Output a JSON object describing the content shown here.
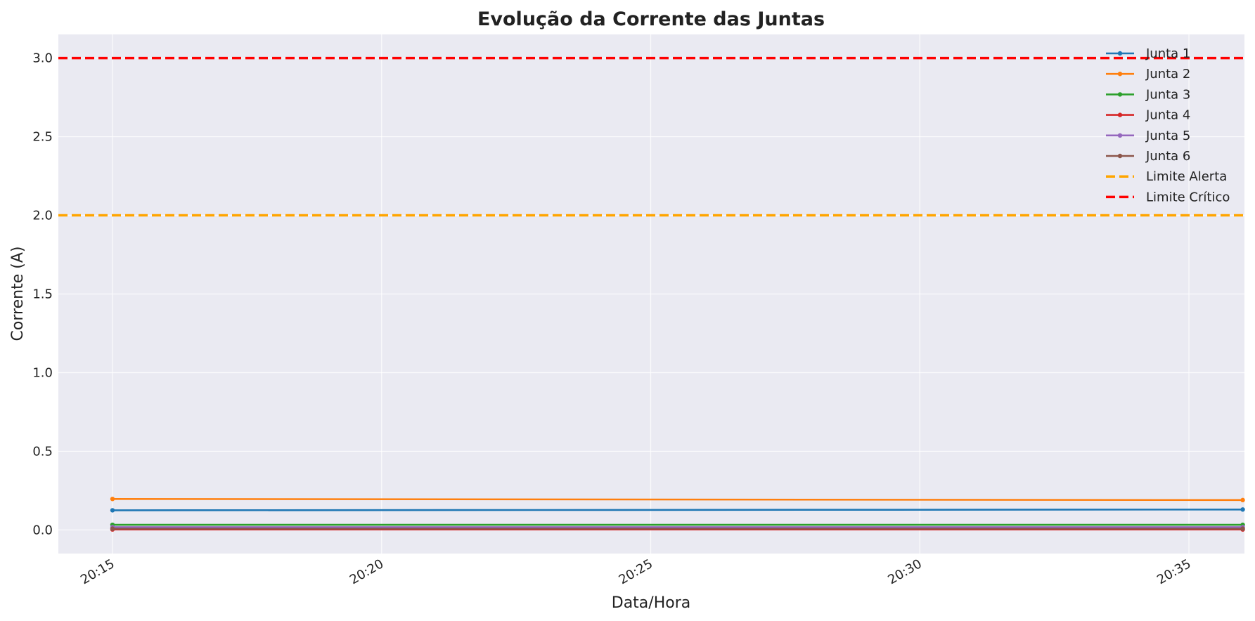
{
  "chart_data": {
    "type": "line",
    "title": "Evolução da Corrente das Juntas",
    "xlabel": "Data/Hora",
    "ylabel": "Corrente (A)",
    "x_ticks": [
      "20:15",
      "20:20",
      "20:25",
      "20:30",
      "20:35"
    ],
    "x": [
      "20:15",
      "20:36"
    ],
    "ylim": [
      -0.15,
      3.15
    ],
    "y_ticks": [
      "0.0",
      "0.5",
      "1.0",
      "1.5",
      "2.0",
      "2.5",
      "3.0"
    ],
    "grid": true,
    "legend_position": "top-right",
    "series": [
      {
        "name": "Junta 1",
        "values": [
          0.125,
          0.13
        ],
        "color": "#1f77b4"
      },
      {
        "name": "Junta 2",
        "values": [
          0.197,
          0.19
        ],
        "color": "#ff7f0e"
      },
      {
        "name": "Junta 3",
        "values": [
          0.033,
          0.033
        ],
        "color": "#2ca02c"
      },
      {
        "name": "Junta 4",
        "values": [
          0.003,
          0.003
        ],
        "color": "#d62728"
      },
      {
        "name": "Junta 5",
        "values": [
          0.018,
          0.018
        ],
        "color": "#9467bd"
      },
      {
        "name": "Junta 6",
        "values": [
          0.008,
          0.008
        ],
        "color": "#8c564b"
      }
    ],
    "thresholds": [
      {
        "name": "Limite Alerta",
        "value": 2.0,
        "color": "#ffa500"
      },
      {
        "name": "Limite Crítico",
        "value": 3.0,
        "color": "#ff0000"
      }
    ]
  }
}
